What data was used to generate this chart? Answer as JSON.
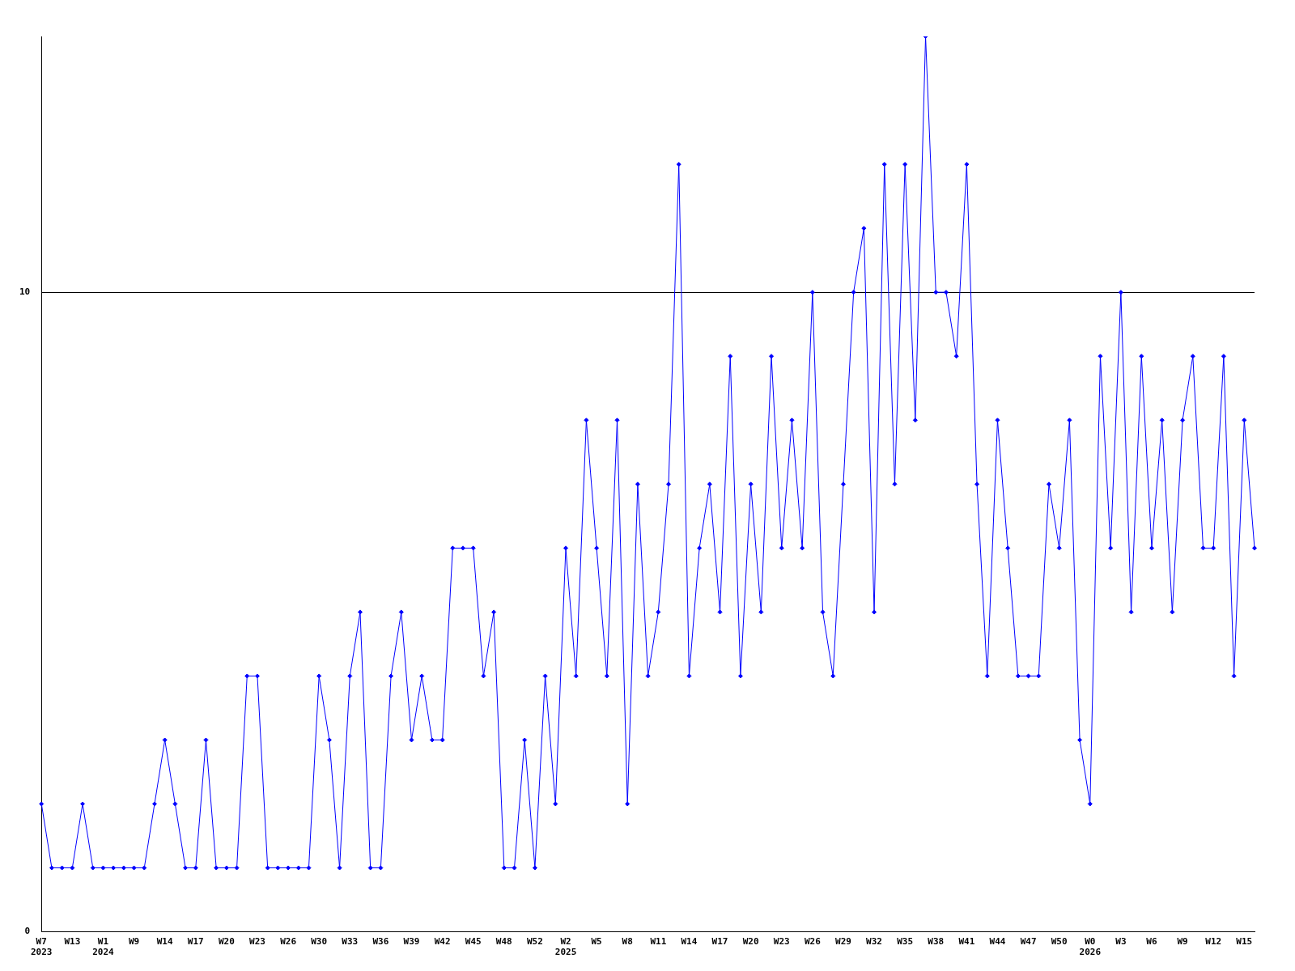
{
  "chart_data": {
    "type": "line",
    "categories": [
      "W7\n2023",
      null,
      null,
      "W13",
      null,
      null,
      "W1\n2024",
      null,
      null,
      "W9",
      null,
      null,
      "W14",
      null,
      null,
      "W17",
      null,
      null,
      "W20",
      null,
      null,
      "W23",
      null,
      null,
      "W26",
      null,
      null,
      "W30",
      null,
      null,
      "W33",
      null,
      null,
      "W36",
      null,
      null,
      "W39",
      null,
      null,
      "W42",
      null,
      null,
      "W45",
      null,
      null,
      "W48",
      null,
      null,
      "W52",
      null,
      null,
      "W2\n2025",
      null,
      null,
      "W5",
      null,
      null,
      "W8",
      null,
      null,
      "W11",
      null,
      null,
      "W14",
      null,
      null,
      "W17",
      null,
      null,
      "W20",
      null,
      null,
      "W23",
      null,
      null,
      "W26",
      null,
      null,
      "W29",
      null,
      null,
      "W32",
      null,
      null,
      "W35",
      null,
      null,
      "W38",
      null,
      null,
      "W41",
      null,
      null,
      "W44",
      null,
      null,
      "W47",
      null,
      null,
      "W50",
      null,
      null,
      "W0\n2026",
      null,
      null,
      "W3",
      null,
      null,
      "W6",
      null,
      null,
      "W9",
      null,
      null,
      "W12",
      null,
      null,
      "W15",
      null
    ],
    "series": [
      {
        "color": "#0000ff",
        "values": [
          2,
          1,
          1,
          1,
          2,
          1,
          1,
          1,
          1,
          1,
          1,
          2,
          3,
          2,
          1,
          1,
          3,
          1,
          1,
          1,
          4,
          4,
          1,
          1,
          1,
          1,
          1,
          4,
          3,
          1,
          4,
          5,
          1,
          1,
          4,
          5,
          3,
          4,
          3,
          3,
          6,
          6,
          6,
          4,
          5,
          1,
          1,
          3,
          1,
          4,
          2,
          6,
          4,
          8,
          6,
          4,
          8,
          2,
          7,
          4,
          5,
          7,
          12,
          4,
          6,
          7,
          5,
          9,
          4,
          7,
          5,
          9,
          6,
          8,
          6,
          10,
          5,
          4,
          7,
          10,
          11,
          5,
          12,
          7,
          12,
          8,
          14,
          10,
          10,
          9,
          12,
          7,
          4,
          8,
          6,
          4,
          4,
          4,
          7,
          6,
          8,
          3,
          2,
          9,
          6,
          10,
          5,
          9,
          6,
          8,
          5,
          8,
          9,
          6,
          6,
          9,
          4,
          8,
          6
        ]
      }
    ],
    "ylim": [
      0,
      14
    ],
    "yticks": [
      0,
      10
    ],
    "grid": "y",
    "marker": "diamond",
    "line_style": "solid",
    "legend": false
  }
}
